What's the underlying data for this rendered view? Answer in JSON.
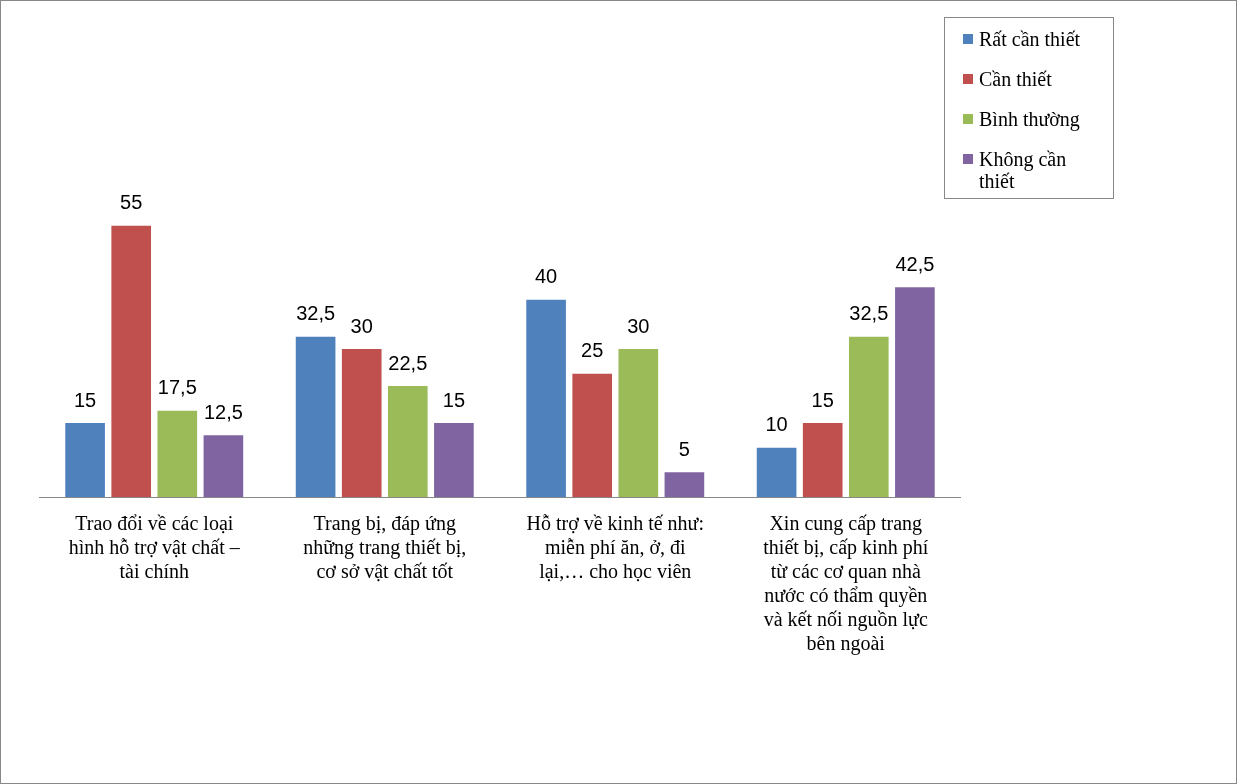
{
  "chart_data": {
    "type": "bar",
    "categories": [
      "Trao đổi về các loại hình hỗ trợ vật chất – tài chính",
      "Trang bị, đáp ứng những trang thiết bị, cơ sở vật chất tốt",
      "Hỗ trợ về kinh tế như: miễn phí ăn, ở, đi lại,… cho học viên",
      "Xin cung cấp trang thiết bị, cấp kinh phí từ các cơ quan nhà nước có thẩm quyền và kết nối nguồn lực bên ngoài"
    ],
    "series": [
      {
        "name": "Rất cần thiết",
        "color": "#4f81bd",
        "values": [
          15,
          32.5,
          40,
          10
        ],
        "value_labels": [
          "15",
          "32,5",
          "40",
          "10"
        ]
      },
      {
        "name": "Cần thiết",
        "color": "#c0504d",
        "values": [
          55,
          30,
          25,
          15
        ],
        "value_labels": [
          "55",
          "30",
          "25",
          "15"
        ]
      },
      {
        "name": "Bình thường",
        "color": "#9bbb59",
        "values": [
          17.5,
          22.5,
          30,
          32.5
        ],
        "value_labels": [
          "17,5",
          "22,5",
          "30",
          "32,5"
        ]
      },
      {
        "name": "Không cần thiết",
        "color": "#8064a2",
        "values": [
          12.5,
          15,
          5,
          42.5
        ],
        "value_labels": [
          "12,5",
          "15",
          "5",
          "42,5"
        ]
      }
    ],
    "grid": false,
    "legend": "top right"
  }
}
